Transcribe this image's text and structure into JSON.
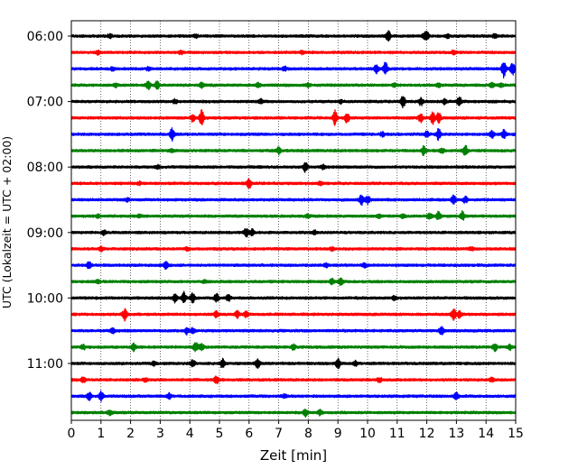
{
  "chart_data": {
    "type": "line",
    "title": "",
    "xlabel": "Zeit  [min]",
    "ylabel": "UTC (Lokalzeit = UTC + 02:00)",
    "xlim": [
      0,
      15
    ],
    "x_ticks": [
      "0",
      "1",
      "2",
      "3",
      "4",
      "5",
      "6",
      "7",
      "8",
      "9",
      "10",
      "11",
      "12",
      "13",
      "14",
      "15"
    ],
    "y_ticks": [
      "06:00",
      "07:00",
      "08:00",
      "09:00",
      "10:00",
      "11:00"
    ],
    "grid": "vertical dotted",
    "legend": "none",
    "row_interval_minutes": 15,
    "colors": [
      "#000000",
      "#ff0000",
      "#0000ff",
      "#008000"
    ],
    "traces": [
      {
        "start": "06:00",
        "color": "#000000",
        "events": [
          [
            1.3,
            0.6
          ],
          [
            4.2,
            0.5
          ],
          [
            10.7,
            1.8
          ],
          [
            11.9,
            0.7
          ],
          [
            12.0,
            1.4
          ],
          [
            12.7,
            0.6
          ],
          [
            14.3,
            0.7
          ]
        ]
      },
      {
        "start": "06:15",
        "color": "#ff0000",
        "events": [
          [
            0.9,
            0.6
          ],
          [
            3.7,
            0.5
          ],
          [
            7.8,
            0.5
          ],
          [
            12.9,
            0.5
          ]
        ]
      },
      {
        "start": "06:30",
        "color": "#0000ff",
        "events": [
          [
            1.4,
            0.6
          ],
          [
            2.6,
            0.5
          ],
          [
            7.2,
            0.6
          ],
          [
            10.3,
            1.4
          ],
          [
            10.6,
            2.2
          ],
          [
            14.6,
            3.0
          ],
          [
            14.9,
            2.0
          ]
        ]
      },
      {
        "start": "06:45",
        "color": "#008000",
        "events": [
          [
            1.5,
            0.5
          ],
          [
            2.6,
            1.3
          ],
          [
            2.9,
            1.4
          ],
          [
            4.4,
            0.8
          ],
          [
            6.3,
            0.6
          ],
          [
            8.0,
            0.6
          ],
          [
            10.9,
            0.6
          ],
          [
            12.4,
            0.5
          ],
          [
            14.2,
            0.7
          ],
          [
            14.5,
            0.6
          ]
        ]
      },
      {
        "start": "07:00",
        "color": "#000000",
        "events": [
          [
            3.5,
            0.6
          ],
          [
            6.4,
            0.6
          ],
          [
            9.1,
            0.6
          ],
          [
            11.2,
            2.0
          ],
          [
            11.8,
            1.2
          ],
          [
            12.6,
            0.8
          ],
          [
            13.1,
            1.4
          ]
        ]
      },
      {
        "start": "07:15",
        "color": "#ff0000",
        "events": [
          [
            4.4,
            2.6
          ],
          [
            4.1,
            1.2
          ],
          [
            8.9,
            2.4
          ],
          [
            9.3,
            1.8
          ],
          [
            11.8,
            1.4
          ],
          [
            12.2,
            2.0
          ],
          [
            12.4,
            1.6
          ]
        ]
      },
      {
        "start": "07:30",
        "color": "#0000ff",
        "events": [
          [
            3.4,
            2.4
          ],
          [
            10.5,
            0.7
          ],
          [
            12.0,
            1.0
          ],
          [
            12.4,
            2.0
          ],
          [
            14.2,
            1.2
          ],
          [
            14.6,
            1.4
          ]
        ]
      },
      {
        "start": "07:45",
        "color": "#008000",
        "events": [
          [
            3.4,
            0.5
          ],
          [
            7.0,
            1.2
          ],
          [
            11.9,
            1.6
          ],
          [
            12.5,
            0.8
          ],
          [
            13.3,
            1.8
          ]
        ]
      },
      {
        "start": "08:00",
        "color": "#000000",
        "events": [
          [
            2.9,
            0.6
          ],
          [
            7.9,
            1.6
          ],
          [
            8.5,
            0.7
          ]
        ]
      },
      {
        "start": "08:15",
        "color": "#ff0000",
        "events": [
          [
            2.3,
            0.5
          ],
          [
            6.0,
            1.8
          ],
          [
            8.4,
            0.5
          ]
        ]
      },
      {
        "start": "08:30",
        "color": "#0000ff",
        "events": [
          [
            1.9,
            0.5
          ],
          [
            9.8,
            1.8
          ],
          [
            10.0,
            1.2
          ],
          [
            12.9,
            1.4
          ],
          [
            13.3,
            1.0
          ]
        ]
      },
      {
        "start": "08:45",
        "color": "#008000",
        "events": [
          [
            0.9,
            0.5
          ],
          [
            2.3,
            0.5
          ],
          [
            8.0,
            0.6
          ],
          [
            10.4,
            0.6
          ],
          [
            11.2,
            0.6
          ],
          [
            12.1,
            1.0
          ],
          [
            12.4,
            1.4
          ],
          [
            13.2,
            1.6
          ]
        ]
      },
      {
        "start": "09:00",
        "color": "#000000",
        "events": [
          [
            1.1,
            0.8
          ],
          [
            5.9,
            1.4
          ],
          [
            6.1,
            1.0
          ],
          [
            8.2,
            0.6
          ]
        ]
      },
      {
        "start": "09:15",
        "color": "#ff0000",
        "events": [
          [
            1.0,
            0.6
          ],
          [
            3.9,
            0.5
          ],
          [
            8.8,
            0.5
          ],
          [
            13.5,
            0.5
          ]
        ]
      },
      {
        "start": "09:30",
        "color": "#0000ff",
        "events": [
          [
            0.6,
            1.4
          ],
          [
            3.2,
            1.4
          ],
          [
            8.6,
            0.6
          ],
          [
            9.9,
            0.7
          ]
        ]
      },
      {
        "start": "09:45",
        "color": "#008000",
        "events": [
          [
            0.9,
            0.5
          ],
          [
            4.5,
            0.5
          ],
          [
            8.8,
            1.0
          ],
          [
            9.1,
            1.2
          ]
        ]
      },
      {
        "start": "10:00",
        "color": "#000000",
        "events": [
          [
            3.5,
            1.4
          ],
          [
            3.8,
            1.8
          ],
          [
            4.1,
            1.5
          ],
          [
            4.9,
            1.3
          ],
          [
            5.3,
            1.0
          ],
          [
            10.9,
            0.6
          ]
        ]
      },
      {
        "start": "10:15",
        "color": "#ff0000",
        "events": [
          [
            1.8,
            2.0
          ],
          [
            4.9,
            1.0
          ],
          [
            5.6,
            1.2
          ],
          [
            5.9,
            1.0
          ],
          [
            12.9,
            2.0
          ],
          [
            13.1,
            1.0
          ]
        ]
      },
      {
        "start": "10:30",
        "color": "#0000ff",
        "events": [
          [
            1.4,
            0.8
          ],
          [
            3.9,
            1.0
          ],
          [
            4.1,
            0.8
          ],
          [
            12.5,
            1.2
          ]
        ]
      },
      {
        "start": "10:45",
        "color": "#008000",
        "events": [
          [
            0.4,
            0.8
          ],
          [
            2.1,
            1.2
          ],
          [
            4.2,
            1.8
          ],
          [
            4.4,
            1.3
          ],
          [
            7.5,
            0.8
          ],
          [
            14.3,
            1.2
          ],
          [
            14.8,
            0.8
          ]
        ]
      },
      {
        "start": "11:00",
        "color": "#000000",
        "events": [
          [
            2.8,
            0.6
          ],
          [
            4.1,
            1.2
          ],
          [
            5.1,
            1.4
          ],
          [
            6.3,
            1.6
          ],
          [
            9.0,
            1.6
          ],
          [
            9.6,
            0.8
          ]
        ]
      },
      {
        "start": "11:15",
        "color": "#ff0000",
        "events": [
          [
            0.4,
            0.8
          ],
          [
            2.5,
            0.6
          ],
          [
            4.9,
            1.2
          ],
          [
            10.4,
            0.7
          ],
          [
            14.2,
            0.6
          ]
        ]
      },
      {
        "start": "11:30",
        "color": "#0000ff",
        "events": [
          [
            0.6,
            1.4
          ],
          [
            1.0,
            1.8
          ],
          [
            3.3,
            1.0
          ],
          [
            7.2,
            0.6
          ],
          [
            13.0,
            1.0
          ]
        ]
      },
      {
        "start": "11:45",
        "color": "#008000",
        "events": [
          [
            1.3,
            0.8
          ],
          [
            7.9,
            1.2
          ],
          [
            8.4,
            0.8
          ]
        ]
      }
    ]
  }
}
